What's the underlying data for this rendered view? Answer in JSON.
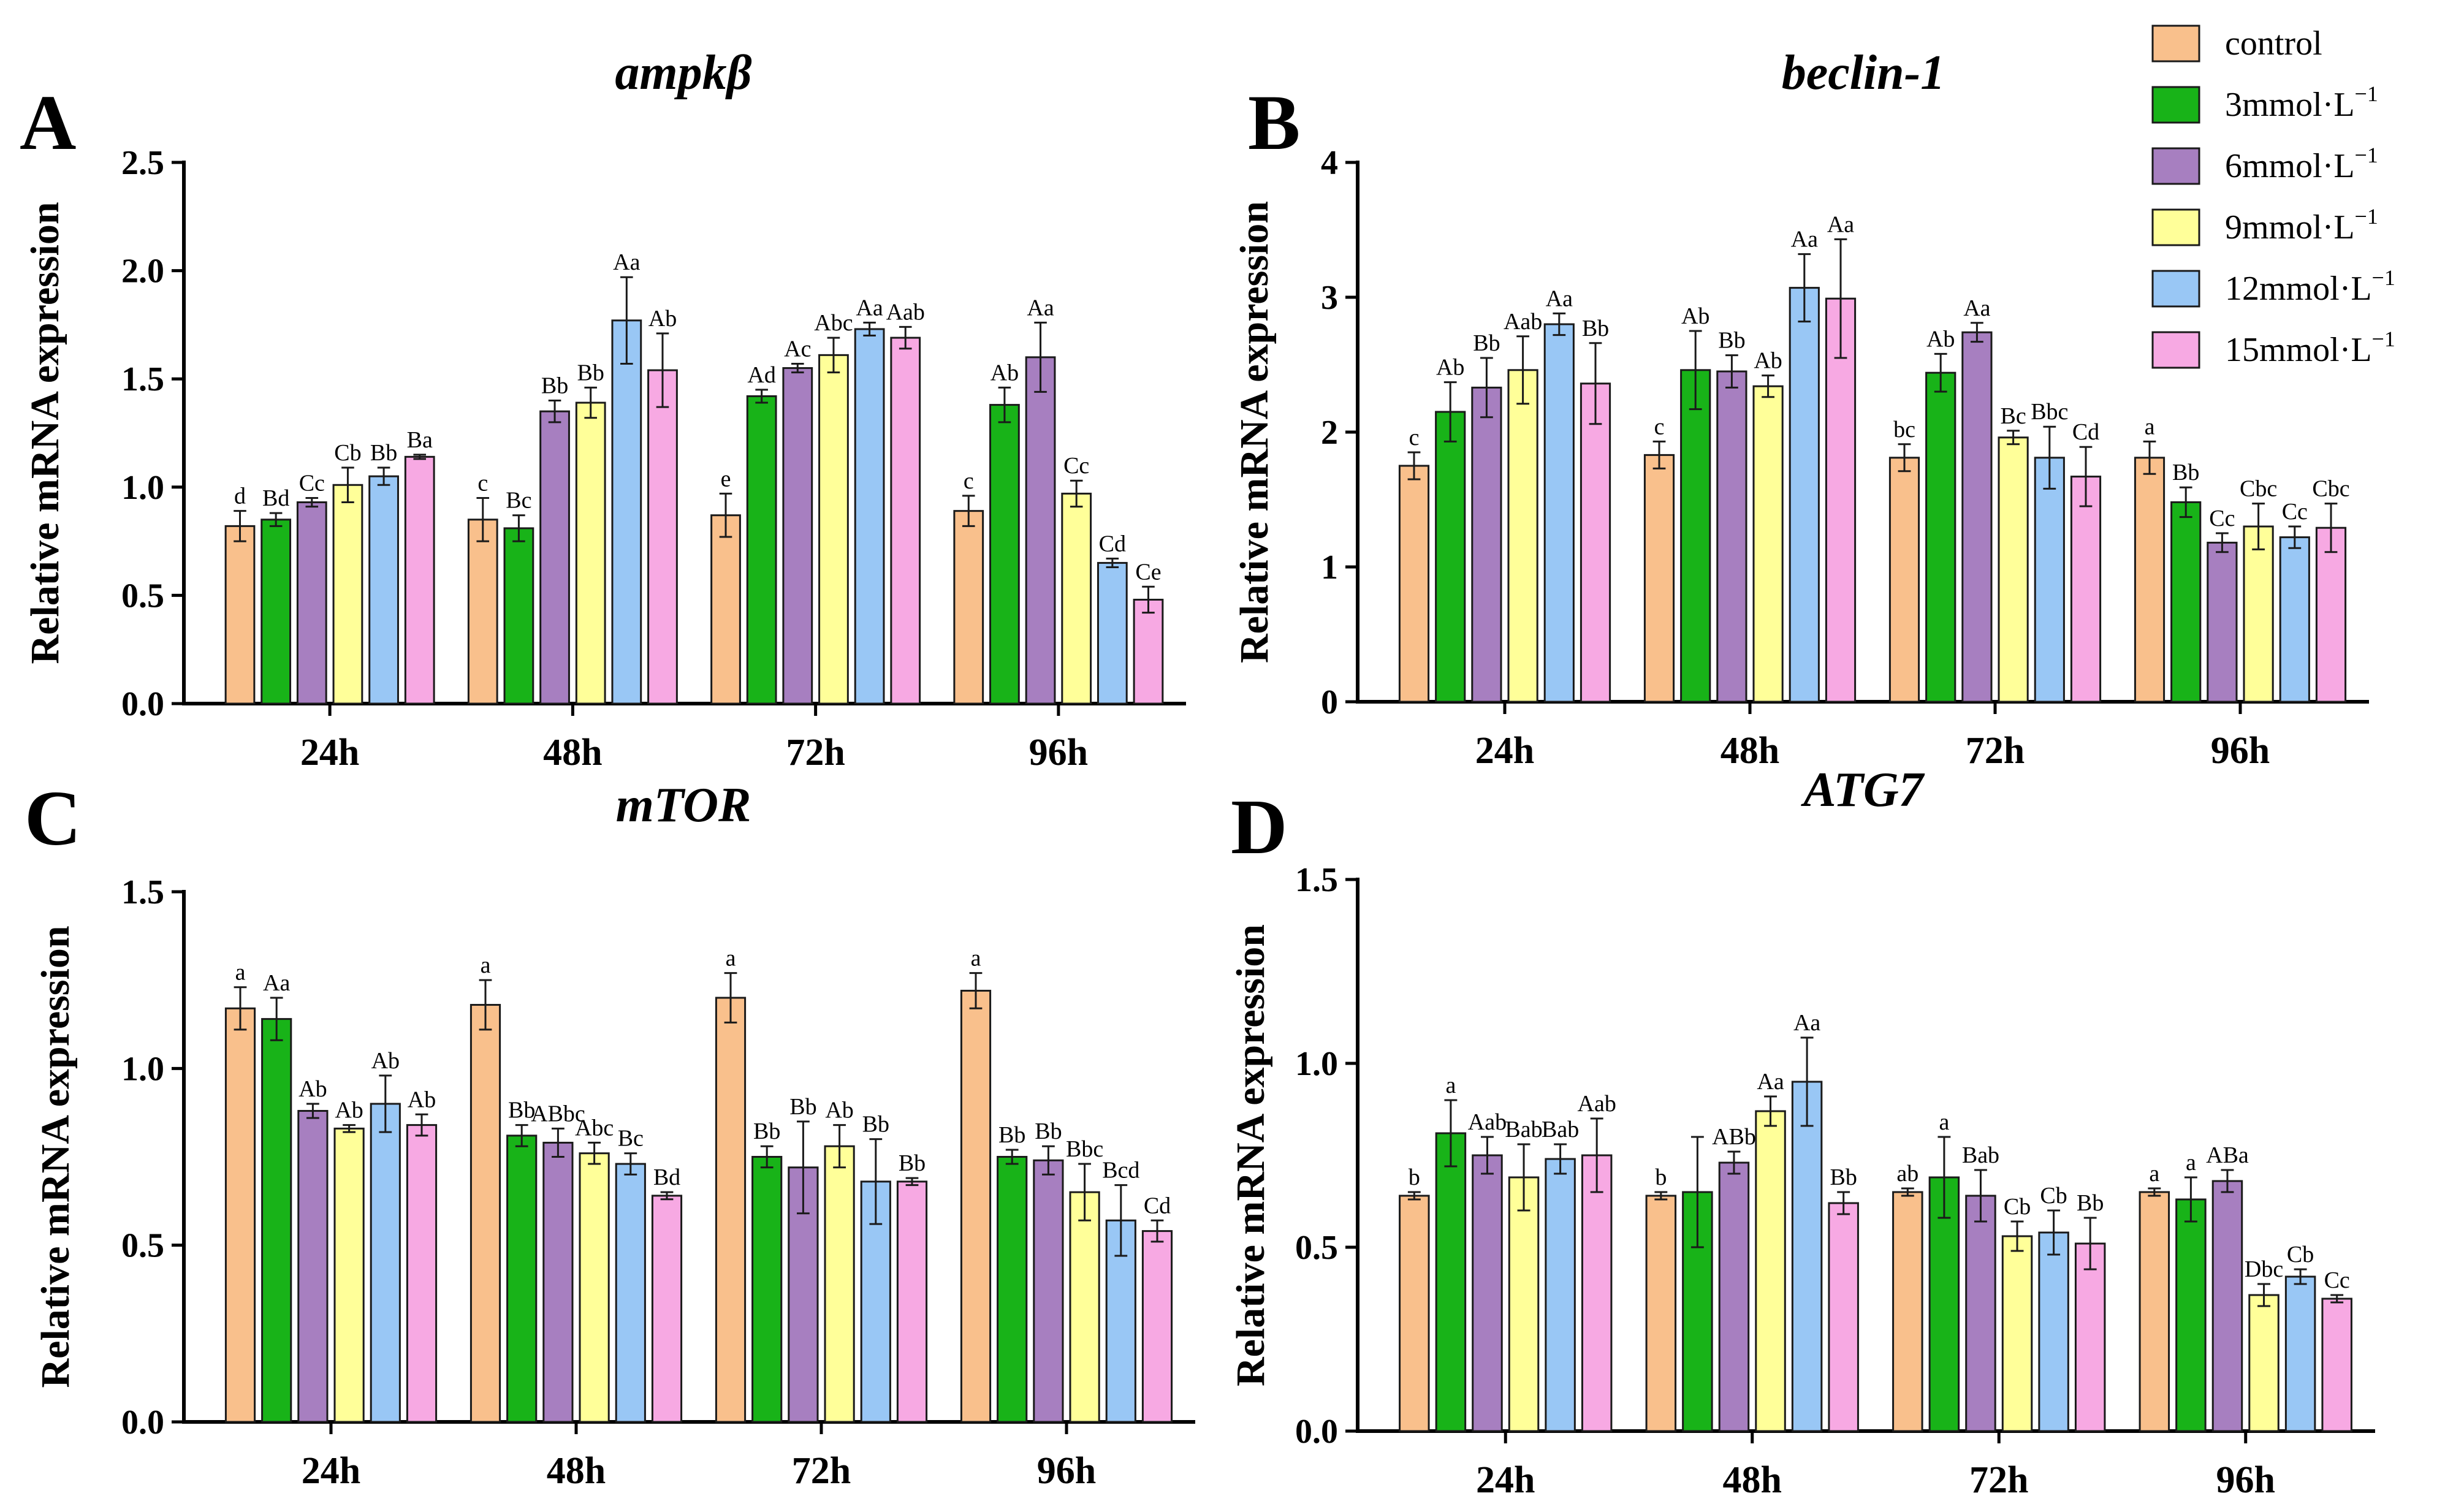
{
  "legend": {
    "items": [
      {
        "label": "control",
        "color": "#F9C08C"
      },
      {
        "label": "3mmol·L",
        "sup": "−1",
        "color": "#18B318"
      },
      {
        "label": "6mmol·L",
        "sup": "−1",
        "color": "#A77FC0"
      },
      {
        "label": "9mmol·L",
        "sup": "−1",
        "color": "#FFFF99"
      },
      {
        "label": "12mmol·L",
        "sup": "−1",
        "color": "#99C7F5"
      },
      {
        "label": "15mmol·L",
        "sup": "−1",
        "color": "#F7A9E3"
      }
    ]
  },
  "chart_data": [
    {
      "type": "bar",
      "panel": "A",
      "title": "ampkβ",
      "ylabel": "Relative mRNA expression",
      "xlabel": "",
      "ylim": [
        0,
        2.5
      ],
      "yticks": [
        "0.0",
        "0.5",
        "1.0",
        "1.5",
        "2.0",
        "2.5"
      ],
      "categories": [
        "24h",
        "48h",
        "72h",
        "96h"
      ],
      "series": [
        {
          "name": "control",
          "values": [
            0.82,
            0.85,
            0.87,
            0.89
          ],
          "errors": [
            0.07,
            0.1,
            0.1,
            0.07
          ],
          "labels": [
            "d",
            "c",
            "e",
            "c"
          ]
        },
        {
          "name": "3mmol·L−1",
          "values": [
            0.85,
            0.81,
            1.42,
            1.38
          ],
          "errors": [
            0.03,
            0.06,
            0.03,
            0.08
          ],
          "labels": [
            "Bd",
            "Bc",
            "Ad",
            "Ab"
          ]
        },
        {
          "name": "6mmol·L−1",
          "values": [
            0.93,
            1.35,
            1.55,
            1.6
          ],
          "errors": [
            0.02,
            0.05,
            0.02,
            0.16
          ],
          "labels": [
            "Cc",
            "Bb",
            "Ac",
            "Aa"
          ]
        },
        {
          "name": "9mmol·L−1",
          "values": [
            1.01,
            1.39,
            1.61,
            0.97
          ],
          "errors": [
            0.08,
            0.07,
            0.08,
            0.06
          ],
          "labels": [
            "Cb",
            "Bb",
            "Abc",
            "Cc"
          ]
        },
        {
          "name": "12mmol·L−1",
          "values": [
            1.05,
            1.77,
            1.73,
            0.65
          ],
          "errors": [
            0.04,
            0.2,
            0.03,
            0.02
          ],
          "labels": [
            "Bb",
            "Aa",
            "Aa",
            "Cd"
          ]
        },
        {
          "name": "15mmol·L−1",
          "values": [
            1.14,
            1.54,
            1.69,
            0.48
          ],
          "errors": [
            0.01,
            0.17,
            0.05,
            0.06
          ],
          "labels": [
            "Ba",
            "Ab",
            "Aab",
            "Ce"
          ]
        }
      ]
    },
    {
      "type": "bar",
      "panel": "B",
      "title": "beclin-1",
      "ylabel": "Relative mRNA expression",
      "xlabel": "",
      "ylim": [
        0,
        4
      ],
      "yticks": [
        "0",
        "1",
        "2",
        "3",
        "4"
      ],
      "categories": [
        "24h",
        "48h",
        "72h",
        "96h"
      ],
      "series": [
        {
          "name": "control",
          "values": [
            1.75,
            1.83,
            1.81,
            1.81
          ],
          "errors": [
            0.1,
            0.1,
            0.1,
            0.12
          ],
          "labels": [
            "c",
            "c",
            "bc",
            "a"
          ]
        },
        {
          "name": "3mmol·L−1",
          "values": [
            2.15,
            2.46,
            2.44,
            1.48
          ],
          "errors": [
            0.22,
            0.29,
            0.14,
            0.11
          ],
          "labels": [
            "Ab",
            "Ab",
            "Ab",
            "Bb"
          ]
        },
        {
          "name": "6mmol·L−1",
          "values": [
            2.33,
            2.45,
            2.74,
            1.18
          ],
          "errors": [
            0.22,
            0.12,
            0.07,
            0.07
          ],
          "labels": [
            "Bb",
            "Bb",
            "Aa",
            "Cc"
          ]
        },
        {
          "name": "9mmol·L−1",
          "values": [
            2.46,
            2.34,
            1.96,
            1.3
          ],
          "errors": [
            0.25,
            0.08,
            0.05,
            0.17
          ],
          "labels": [
            "Aab",
            "Ab",
            "Bc",
            "Cbc"
          ]
        },
        {
          "name": "12mmol·L−1",
          "values": [
            2.8,
            3.07,
            1.81,
            1.22
          ],
          "errors": [
            0.08,
            0.25,
            0.23,
            0.08
          ],
          "labels": [
            "Aa",
            "Aa",
            "Bbc",
            "Cc"
          ]
        },
        {
          "name": "15mmol·L−1",
          "values": [
            2.36,
            2.99,
            1.67,
            1.29
          ],
          "errors": [
            0.3,
            0.44,
            0.22,
            0.18
          ],
          "labels": [
            "Bb",
            "Aa",
            "Cd",
            "Cbc"
          ]
        }
      ]
    },
    {
      "type": "bar",
      "panel": "C",
      "title": "mTOR",
      "ylabel": "Relative mRNA expression",
      "xlabel": "",
      "ylim": [
        0,
        1.5
      ],
      "yticks": [
        "0.0",
        "0.5",
        "1.0",
        "1.5"
      ],
      "categories": [
        "24h",
        "48h",
        "72h",
        "96h"
      ],
      "series": [
        {
          "name": "control",
          "values": [
            1.17,
            1.18,
            1.2,
            1.22
          ],
          "errors": [
            0.06,
            0.07,
            0.07,
            0.05
          ],
          "labels": [
            "a",
            "a",
            "a",
            "a"
          ]
        },
        {
          "name": "3mmol·L−1",
          "values": [
            1.14,
            0.81,
            0.75,
            0.75
          ],
          "errors": [
            0.06,
            0.03,
            0.03,
            0.02
          ],
          "labels": [
            "Aa",
            "Bb",
            "Bb",
            "Bb"
          ]
        },
        {
          "name": "6mmol·L−1",
          "values": [
            0.88,
            0.79,
            0.72,
            0.74
          ],
          "errors": [
            0.02,
            0.04,
            0.13,
            0.04
          ],
          "labels": [
            "Ab",
            "ABbc",
            "Bb",
            "Bb"
          ]
        },
        {
          "name": "9mmol·L−1",
          "values": [
            0.83,
            0.76,
            0.78,
            0.65
          ],
          "errors": [
            0.01,
            0.03,
            0.06,
            0.08
          ],
          "labels": [
            "Ab",
            "Abc",
            "Ab",
            "Bbc"
          ]
        },
        {
          "name": "12mmol·L−1",
          "values": [
            0.9,
            0.73,
            0.68,
            0.57
          ],
          "errors": [
            0.08,
            0.03,
            0.12,
            0.1
          ],
          "labels": [
            "Ab",
            "Bc",
            "Bb",
            "Bcd"
          ]
        },
        {
          "name": "15mmol·L−1",
          "values": [
            0.84,
            0.64,
            0.68,
            0.54
          ],
          "errors": [
            0.03,
            0.01,
            0.01,
            0.03
          ],
          "labels": [
            "Ab",
            "Bd",
            "Bb",
            "Cd"
          ]
        }
      ]
    },
    {
      "type": "bar",
      "panel": "D",
      "title": "ATG7",
      "ylabel": "Relative mRNA expression",
      "xlabel": "",
      "ylim": [
        0,
        1.5
      ],
      "yticks": [
        "0.0",
        "0.5",
        "1.0",
        "1.5"
      ],
      "categories": [
        "24h",
        "48h",
        "72h",
        "96h"
      ],
      "series": [
        {
          "name": "control",
          "values": [
            0.64,
            0.64,
            0.65,
            0.65
          ],
          "errors": [
            0.01,
            0.01,
            0.01,
            0.01
          ],
          "labels": [
            "b",
            "b",
            "ab",
            "a"
          ]
        },
        {
          "name": "3mmol·L−1",
          "values": [
            0.81,
            0.65,
            0.69,
            0.63
          ],
          "errors": [
            0.09,
            0.15,
            0.11,
            0.06
          ],
          "labels": [
            "a",
            "",
            "a",
            "a"
          ]
        },
        {
          "name": "6mmol·L−1",
          "values": [
            0.75,
            0.73,
            0.64,
            0.68
          ],
          "errors": [
            0.05,
            0.03,
            0.07,
            0.03
          ],
          "labels": [
            "Aab",
            "ABb",
            "Bab",
            "ABa"
          ]
        },
        {
          "name": "9mmol·L−1",
          "values": [
            0.69,
            0.87,
            0.53,
            0.37
          ],
          "errors": [
            0.09,
            0.04,
            0.04,
            0.03
          ],
          "labels": [
            "Bab",
            "Aa",
            "Cb",
            "Dbc"
          ]
        },
        {
          "name": "12mmol·L−1",
          "values": [
            0.74,
            0.95,
            0.54,
            0.42
          ],
          "errors": [
            0.04,
            0.12,
            0.06,
            0.02
          ],
          "labels": [
            "Bab",
            "Aa",
            "Cb",
            "Cb"
          ]
        },
        {
          "name": "15mmol·L−1",
          "values": [
            0.75,
            0.62,
            0.51,
            0.36
          ],
          "errors": [
            0.1,
            0.03,
            0.07,
            0.01
          ],
          "labels": [
            "Aab",
            "Bb",
            "Bb",
            "Cc"
          ]
        }
      ]
    }
  ]
}
